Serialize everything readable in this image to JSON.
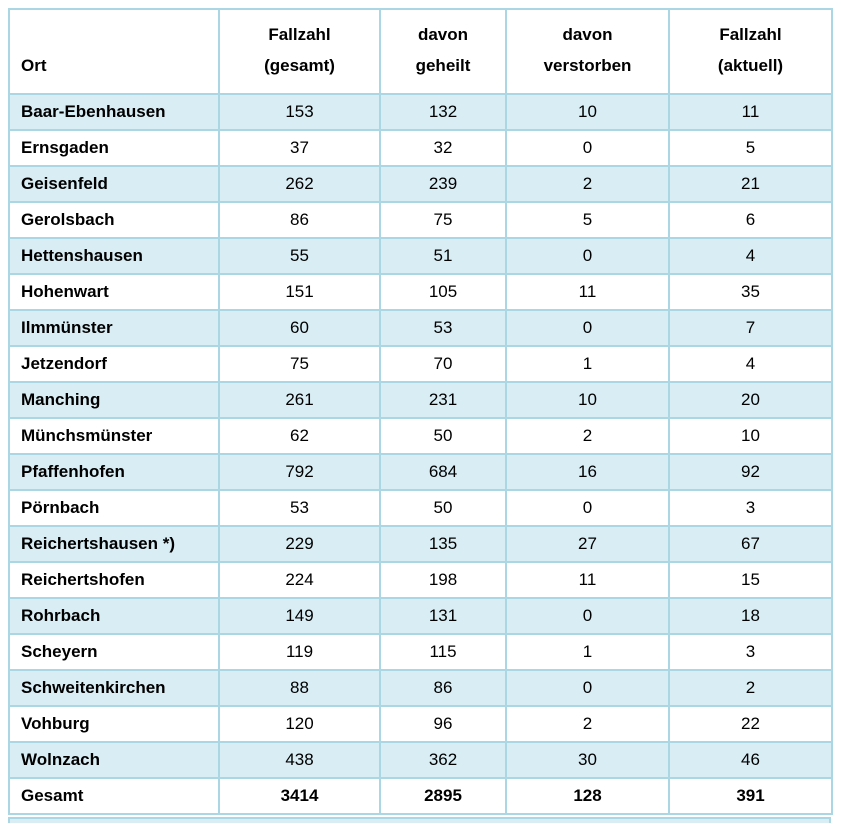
{
  "table": {
    "columns": [
      {
        "id": "ort",
        "label": "Ort"
      },
      {
        "id": "fallzahl_gesamt",
        "line1": "Fallzahl",
        "line2": "(gesamt)"
      },
      {
        "id": "davon_geheilt",
        "line1": "davon",
        "line2": "geheilt"
      },
      {
        "id": "davon_verstorben",
        "line1": "davon",
        "line2": "verstorben"
      },
      {
        "id": "fallzahl_aktuell",
        "line1": "Fallzahl",
        "line2": "(aktuell)"
      }
    ],
    "rows": [
      {
        "ort": "Baar-Ebenhausen",
        "gesamt": "153",
        "geheilt": "132",
        "verstorben": "10",
        "aktuell": "11"
      },
      {
        "ort": "Ernsgaden",
        "gesamt": "37",
        "geheilt": "32",
        "verstorben": "0",
        "aktuell": "5"
      },
      {
        "ort": "Geisenfeld",
        "gesamt": "262",
        "geheilt": "239",
        "verstorben": "2",
        "aktuell": "21"
      },
      {
        "ort": "Gerolsbach",
        "gesamt": "86",
        "geheilt": "75",
        "verstorben": "5",
        "aktuell": "6"
      },
      {
        "ort": "Hettenshausen",
        "gesamt": "55",
        "geheilt": "51",
        "verstorben": "0",
        "aktuell": "4"
      },
      {
        "ort": "Hohenwart",
        "gesamt": "151",
        "geheilt": "105",
        "verstorben": "11",
        "aktuell": "35"
      },
      {
        "ort": "Ilmmünster",
        "gesamt": "60",
        "geheilt": "53",
        "verstorben": "0",
        "aktuell": "7"
      },
      {
        "ort": "Jetzendorf",
        "gesamt": "75",
        "geheilt": "70",
        "verstorben": "1",
        "aktuell": "4"
      },
      {
        "ort": "Manching",
        "gesamt": "261",
        "geheilt": "231",
        "verstorben": "10",
        "aktuell": "20"
      },
      {
        "ort": "Münchsmünster",
        "gesamt": "62",
        "geheilt": "50",
        "verstorben": "2",
        "aktuell": "10"
      },
      {
        "ort": "Pfaffenhofen",
        "gesamt": "792",
        "geheilt": "684",
        "verstorben": "16",
        "aktuell": "92"
      },
      {
        "ort": "Pörnbach",
        "gesamt": "53",
        "geheilt": "50",
        "verstorben": "0",
        "aktuell": "3"
      },
      {
        "ort": "Reichertshausen *)",
        "gesamt": "229",
        "geheilt": "135",
        "verstorben": "27",
        "aktuell": "67"
      },
      {
        "ort": "Reichertshofen",
        "gesamt": "224",
        "geheilt": "198",
        "verstorben": "11",
        "aktuell": "15"
      },
      {
        "ort": "Rohrbach",
        "gesamt": "149",
        "geheilt": "131",
        "verstorben": "0",
        "aktuell": "18"
      },
      {
        "ort": "Scheyern",
        "gesamt": "119",
        "geheilt": "115",
        "verstorben": "1",
        "aktuell": "3"
      },
      {
        "ort": "Schweitenkirchen",
        "gesamt": "88",
        "geheilt": "86",
        "verstorben": "0",
        "aktuell": "2"
      },
      {
        "ort": "Vohburg",
        "gesamt": "120",
        "geheilt": "96",
        "verstorben": "2",
        "aktuell": "22"
      },
      {
        "ort": "Wolnzach",
        "gesamt": "438",
        "geheilt": "362",
        "verstorben": "30",
        "aktuell": "46"
      }
    ],
    "total_row": {
      "ort": "Gesamt",
      "gesamt": "3414",
      "geheilt": "2895",
      "verstorben": "128",
      "aktuell": "391"
    },
    "colors": {
      "row_stripe": "#d8edf4",
      "border": "#abd6e4",
      "text": "#000000"
    }
  }
}
